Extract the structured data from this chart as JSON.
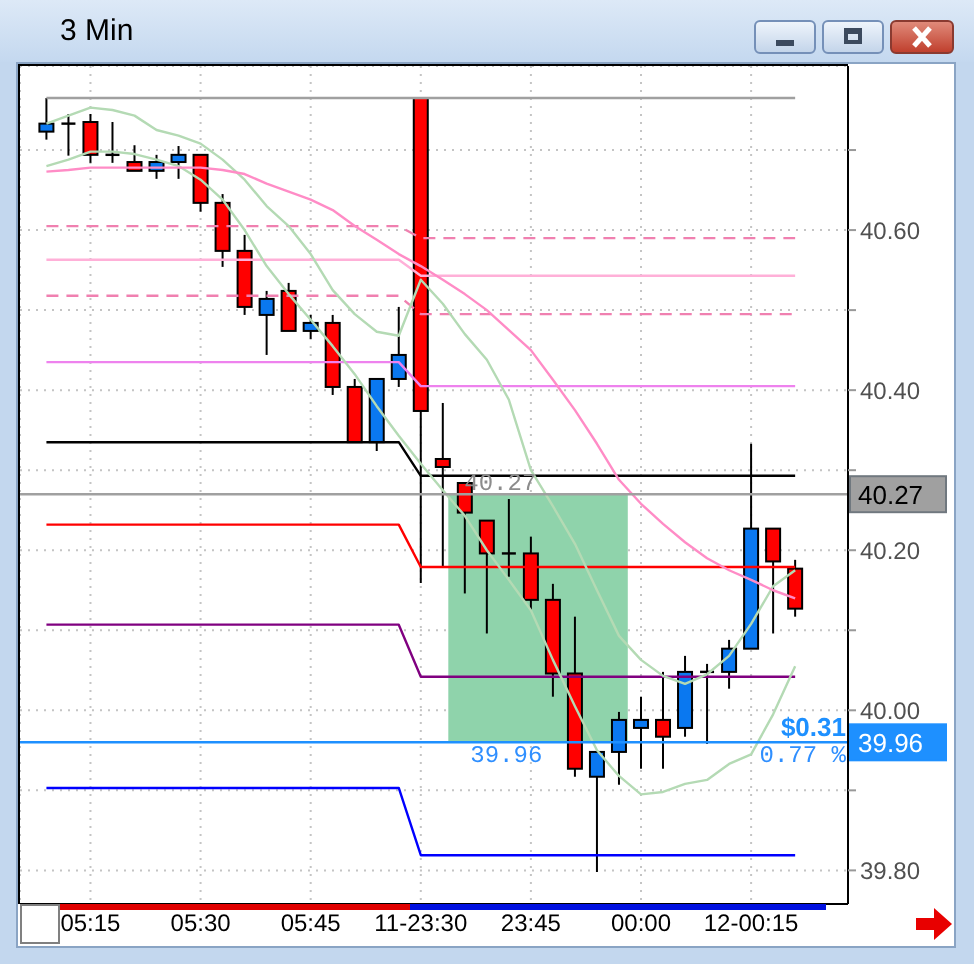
{
  "chart_data": {
    "type": "candlestick",
    "title": "3 Min",
    "categories": [
      null,
      null,
      "05:15",
      null,
      null,
      null,
      null,
      "05:30",
      null,
      null,
      null,
      null,
      "05:45",
      null,
      null,
      null,
      null,
      "11-23:30",
      null,
      null,
      null,
      null,
      "23:45",
      null,
      null,
      null,
      null,
      "00:00",
      null,
      null,
      null,
      null,
      "12-00:15",
      null,
      null
    ],
    "ohlc": [
      [
        40.723,
        40.765,
        40.713,
        40.733
      ],
      [
        40.733,
        40.745,
        40.693,
        40.733
      ],
      [
        40.735,
        40.745,
        40.684,
        40.694
      ],
      [
        40.694,
        40.735,
        40.684,
        40.694
      ],
      [
        40.685,
        40.706,
        40.674,
        40.674
      ],
      [
        40.674,
        40.694,
        40.664,
        40.685
      ],
      [
        40.685,
        40.705,
        40.664,
        40.694
      ],
      [
        40.694,
        40.694,
        40.623,
        40.634
      ],
      [
        40.634,
        40.645,
        40.554,
        40.574
      ],
      [
        40.574,
        40.594,
        40.494,
        40.504
      ],
      [
        40.494,
        40.524,
        40.444,
        40.514
      ],
      [
        40.524,
        40.534,
        40.474,
        40.474
      ],
      [
        40.474,
        40.494,
        40.464,
        40.484
      ],
      [
        40.484,
        40.494,
        40.394,
        40.404
      ],
      [
        40.404,
        40.414,
        40.335,
        40.335
      ],
      [
        40.335,
        40.414,
        40.324,
        40.414
      ],
      [
        40.414,
        40.504,
        40.404,
        40.444
      ],
      [
        40.765,
        40.765,
        40.159,
        40.374
      ],
      [
        40.314,
        40.384,
        40.179,
        40.304
      ],
      [
        40.284,
        40.284,
        40.146,
        40.247
      ],
      [
        40.237,
        40.237,
        40.096,
        40.196
      ],
      [
        40.196,
        40.264,
        40.167,
        40.196
      ],
      [
        40.196,
        40.217,
        40.125,
        40.138
      ],
      [
        40.138,
        40.158,
        40.017,
        40.046
      ],
      [
        40.046,
        40.117,
        39.917,
        39.927
      ],
      [
        39.917,
        39.948,
        39.798,
        39.948
      ],
      [
        39.948,
        39.998,
        39.907,
        39.988
      ],
      [
        39.978,
        40.017,
        39.927,
        39.988
      ],
      [
        39.988,
        40.048,
        39.927,
        39.967
      ],
      [
        39.978,
        40.068,
        39.967,
        40.048
      ],
      [
        40.048,
        40.058,
        39.958,
        40.048
      ],
      [
        40.048,
        40.088,
        40.027,
        40.077
      ],
      [
        40.077,
        40.333,
        40.077,
        40.227
      ],
      [
        40.227,
        40.227,
        40.096,
        40.186
      ],
      [
        40.177,
        40.188,
        40.117,
        40.127
      ]
    ],
    "colors": [
      "#0a78f0",
      "#000000",
      "#ff0000",
      "#000000",
      "#ff0000",
      "#0a78f0",
      "#0a78f0",
      "#ff0000",
      "#ff0000",
      "#ff0000",
      "#0a78f0",
      "#ff0000",
      "#0a78f0",
      "#ff0000",
      "#ff0000",
      "#0a78f0",
      "#0a78f0",
      "#ff0000",
      "#ff0000",
      "#ff0000",
      "#ff0000",
      "#000000",
      "#ff0000",
      "#ff0000",
      "#ff0000",
      "#0a78f0",
      "#0a78f0",
      "#0a78f0",
      "#ff0000",
      "#0a78f0",
      "#000000",
      "#0a78f0",
      "#0a78f0",
      "#ff0000",
      "#ff0000"
    ],
    "series": [
      {
        "type": "line",
        "color": "#a0a0a0",
        "values": [
          40.765,
          40.765,
          40.765,
          40.765,
          40.765,
          40.765,
          40.765,
          40.765,
          40.765,
          40.765,
          40.765,
          40.765,
          40.765,
          40.765,
          40.765,
          40.765,
          40.765,
          40.765,
          40.765,
          40.765,
          40.765,
          40.765,
          40.765,
          40.765,
          40.765,
          40.765,
          40.765,
          40.765,
          40.765,
          40.765,
          40.765,
          40.765,
          40.765,
          40.765,
          40.765
        ]
      },
      {
        "type": "line",
        "color": "#f080b0",
        "line_style": "dashed",
        "values": [
          40.605,
          40.605,
          40.605,
          40.605,
          40.605,
          40.605,
          40.605,
          40.605,
          40.605,
          40.605,
          40.605,
          40.605,
          40.605,
          40.605,
          40.605,
          40.605,
          40.605,
          40.59,
          40.59,
          40.59,
          40.59,
          40.59,
          40.59,
          40.59,
          40.59,
          40.59,
          40.59,
          40.59,
          40.59,
          40.59,
          40.59,
          40.59,
          40.59,
          40.59,
          40.59
        ]
      },
      {
        "type": "line",
        "color": "#ffb0d8",
        "values": [
          40.563,
          40.563,
          40.563,
          40.563,
          40.563,
          40.563,
          40.563,
          40.563,
          40.563,
          40.563,
          40.563,
          40.563,
          40.563,
          40.563,
          40.563,
          40.563,
          40.563,
          40.543,
          40.543,
          40.543,
          40.543,
          40.543,
          40.543,
          40.543,
          40.543,
          40.543,
          40.543,
          40.543,
          40.543,
          40.543,
          40.543,
          40.543,
          40.543,
          40.543,
          40.543
        ]
      },
      {
        "type": "line",
        "color": "#f080b0",
        "line_style": "dashed",
        "values": [
          40.518,
          40.518,
          40.518,
          40.518,
          40.518,
          40.518,
          40.518,
          40.518,
          40.518,
          40.518,
          40.518,
          40.518,
          40.518,
          40.518,
          40.518,
          40.518,
          40.518,
          40.495,
          40.495,
          40.495,
          40.495,
          40.495,
          40.495,
          40.495,
          40.495,
          40.495,
          40.495,
          40.495,
          40.495,
          40.495,
          40.495,
          40.495,
          40.495,
          40.495,
          40.495
        ]
      },
      {
        "type": "line",
        "color": "#ee82ee",
        "values": [
          40.435,
          40.435,
          40.435,
          40.435,
          40.435,
          40.435,
          40.435,
          40.435,
          40.435,
          40.435,
          40.435,
          40.435,
          40.435,
          40.435,
          40.435,
          40.435,
          40.435,
          40.405,
          40.405,
          40.405,
          40.405,
          40.405,
          40.405,
          40.405,
          40.405,
          40.405,
          40.405,
          40.405,
          40.405,
          40.405,
          40.405,
          40.405,
          40.405,
          40.405,
          40.405
        ]
      },
      {
        "type": "line",
        "color": "#000000",
        "values": [
          40.335,
          40.335,
          40.335,
          40.335,
          40.335,
          40.335,
          40.335,
          40.335,
          40.335,
          40.335,
          40.335,
          40.335,
          40.335,
          40.335,
          40.335,
          40.335,
          40.335,
          40.293,
          40.293,
          40.293,
          40.293,
          40.293,
          40.293,
          40.293,
          40.293,
          40.293,
          40.293,
          40.293,
          40.293,
          40.293,
          40.293,
          40.293,
          40.293,
          40.293,
          40.293
        ]
      },
      {
        "type": "line",
        "color": "#ff0000",
        "values": [
          40.232,
          40.232,
          40.232,
          40.232,
          40.232,
          40.232,
          40.232,
          40.232,
          40.232,
          40.232,
          40.232,
          40.232,
          40.232,
          40.232,
          40.232,
          40.232,
          40.232,
          40.179,
          40.179,
          40.179,
          40.179,
          40.179,
          40.179,
          40.179,
          40.179,
          40.179,
          40.179,
          40.179,
          40.179,
          40.179,
          40.179,
          40.179,
          40.179,
          40.179,
          40.179
        ]
      },
      {
        "type": "line",
        "color": "#800080",
        "values": [
          40.107,
          40.107,
          40.107,
          40.107,
          40.107,
          40.107,
          40.107,
          40.107,
          40.107,
          40.107,
          40.107,
          40.107,
          40.107,
          40.107,
          40.107,
          40.107,
          40.107,
          40.042,
          40.042,
          40.042,
          40.042,
          40.042,
          40.042,
          40.042,
          40.042,
          40.042,
          40.042,
          40.042,
          40.042,
          40.042,
          40.042,
          40.042,
          40.042,
          40.042,
          40.042
        ]
      },
      {
        "type": "line",
        "color": "#0000ff",
        "values": [
          39.903,
          39.903,
          39.903,
          39.903,
          39.903,
          39.903,
          39.903,
          39.903,
          39.903,
          39.903,
          39.903,
          39.903,
          39.903,
          39.903,
          39.903,
          39.903,
          39.903,
          39.819,
          39.819,
          39.819,
          39.819,
          39.819,
          39.819,
          39.819,
          39.819,
          39.819,
          39.819,
          39.819,
          39.819,
          39.819,
          39.819,
          39.819,
          39.819,
          39.819,
          39.819
        ]
      },
      {
        "type": "line",
        "color": "#b4dab4",
        "values": [
          40.733,
          40.743,
          40.753,
          40.75,
          40.743,
          40.725,
          40.718,
          40.708,
          40.688,
          40.663,
          40.63,
          40.605,
          40.57,
          40.525,
          40.495,
          40.473,
          40.468,
          40.538,
          40.508,
          40.47,
          40.438,
          40.388,
          40.3,
          40.255,
          40.208,
          40.15,
          40.093,
          40.063,
          40.043,
          40.033,
          40.045,
          40.068,
          40.108,
          40.155,
          40.175
        ]
      },
      {
        "type": "line",
        "color": "#b4dab4",
        "values": [
          40.68,
          40.688,
          40.698,
          40.698,
          40.695,
          40.688,
          40.68,
          40.663,
          40.638,
          40.6,
          40.555,
          40.52,
          40.488,
          40.455,
          40.42,
          40.38,
          40.343,
          40.308,
          40.275,
          40.243,
          40.2,
          40.163,
          40.125,
          40.063,
          40.005,
          39.95,
          39.918,
          39.895,
          39.898,
          39.908,
          39.913,
          39.933,
          39.945,
          39.995,
          40.055
        ]
      },
      {
        "type": "line",
        "color": "#ff8cc6",
        "values": [
          40.673,
          40.675,
          40.678,
          40.678,
          40.678,
          40.678,
          40.678,
          40.678,
          40.675,
          40.67,
          40.658,
          40.648,
          40.638,
          40.625,
          40.605,
          40.588,
          40.57,
          40.555,
          40.538,
          40.52,
          40.5,
          40.475,
          40.45,
          40.413,
          40.375,
          40.333,
          40.288,
          40.258,
          40.233,
          40.21,
          40.19,
          40.175,
          40.163,
          40.15,
          40.14
        ]
      }
    ],
    "ylim": [
      39.758,
      40.805
    ],
    "yticks": [
      {
        "value": 39.8,
        "label": "39.80"
      },
      {
        "value": 39.9,
        "label": null
      },
      {
        "value": 40.0,
        "label": "40.00"
      },
      {
        "value": 40.1,
        "label": null
      },
      {
        "value": 40.2,
        "label": "40.20"
      },
      {
        "value": 40.3,
        "label": null
      },
      {
        "value": 40.4,
        "label": "40.40"
      },
      {
        "value": 40.5,
        "label": null
      },
      {
        "value": 40.6,
        "label": "40.60"
      },
      {
        "value": 40.7,
        "label": null
      }
    ],
    "grid": true,
    "ref_lines": [
      {
        "axis": "y",
        "value": 40.27,
        "label": "40.27",
        "color": "#a0a0a0"
      },
      {
        "axis": "y",
        "value": 39.96,
        "label": "39.96",
        "color": "#1e90ff"
      }
    ],
    "annotations": [
      {
        "text": "40.27",
        "y": 40.27
      },
      {
        "text": "39.96",
        "y": 39.96
      },
      {
        "text": "$0.31",
        "y": 39.96
      },
      {
        "text": "0.77 %",
        "y": 39.96
      }
    ]
  }
}
